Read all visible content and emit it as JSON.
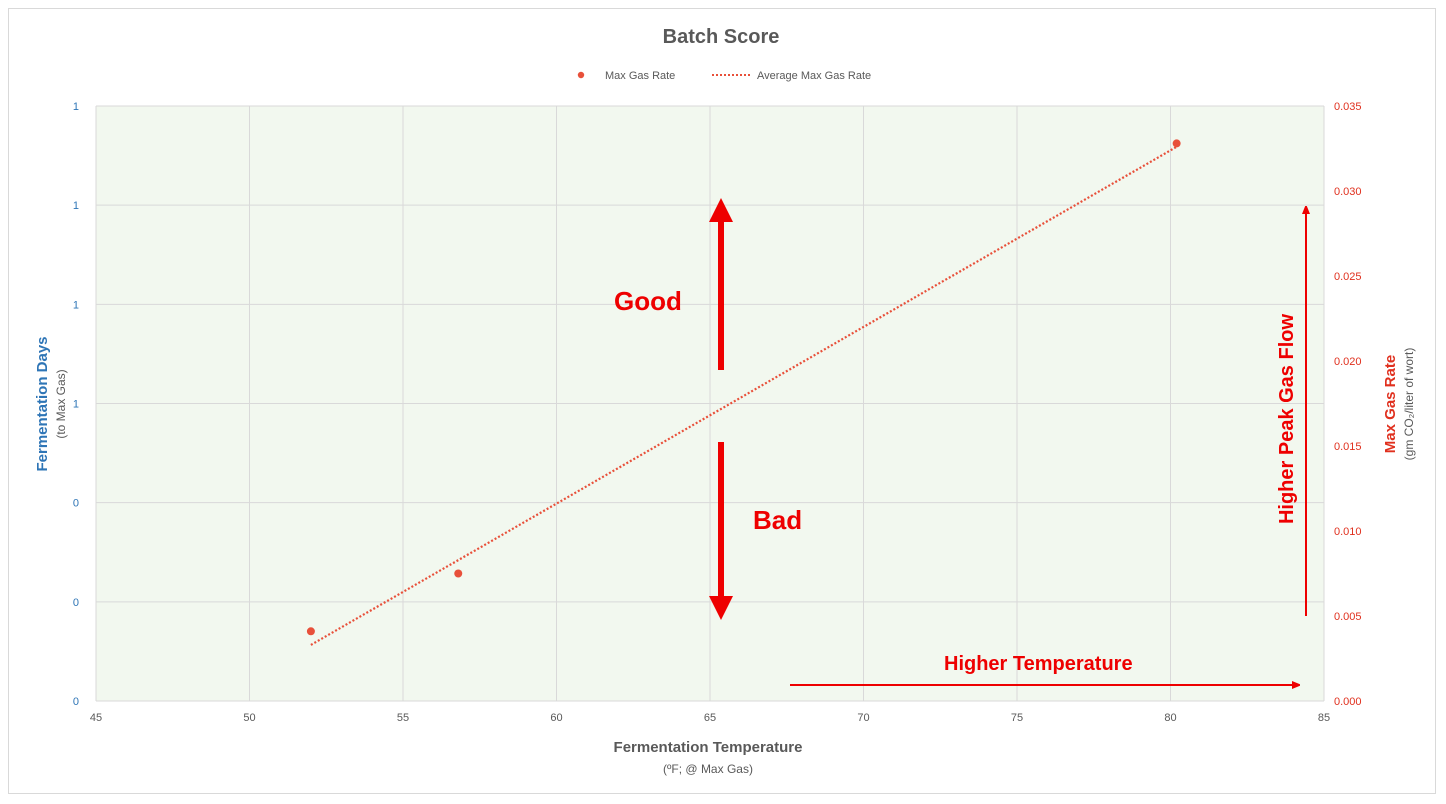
{
  "chart_data": {
    "type": "scatter",
    "title": "Batch Score",
    "legend": {
      "placement": "top-center",
      "entries": [
        "Max Gas Rate",
        "Average Max Gas Rate"
      ]
    },
    "series": [
      {
        "name": "Max Gas Rate",
        "axis": "right",
        "color": "#e8503a",
        "points": [
          {
            "x": 52.0,
            "y": 0.0041
          },
          {
            "x": 56.8,
            "y": 0.0075
          },
          {
            "x": 80.2,
            "y": 0.0328
          }
        ]
      },
      {
        "name": "Average Max Gas Rate",
        "kind": "trendline",
        "style": "dotted",
        "axis": "right",
        "color": "#e8503a",
        "points": [
          {
            "x": 52.0,
            "y": 0.0033
          },
          {
            "x": 80.2,
            "y": 0.0326
          }
        ]
      }
    ],
    "x_axis": {
      "label": "Fermentation Temperature",
      "sublabel": "(ºF; @ Max Gas)",
      "range": [
        45,
        85
      ],
      "ticks": [
        "45",
        "50",
        "55",
        "60",
        "65",
        "70",
        "75",
        "80",
        "85"
      ]
    },
    "y_left": {
      "label": "Fermentation Days",
      "sublabel": "(to Max Gas)",
      "color": "#2e75b6",
      "ticks": [
        "1",
        "1",
        "1",
        "1",
        "0",
        "0",
        "0"
      ]
    },
    "y_right": {
      "label": "Max Gas Rate",
      "sublabel": "(gm CO₂/liter of wort)",
      "color": "#e0301e",
      "range": [
        0,
        0.035
      ],
      "ticks": [
        "0.000",
        "0.005",
        "0.010",
        "0.015",
        "0.020",
        "0.025",
        "0.030",
        "0.035"
      ]
    },
    "grid": true,
    "plot_background": "#f2f8ef",
    "annotations": {
      "good": "Good",
      "bad": "Bad",
      "higher_temperature": "Higher Temperature",
      "higher_peak_gas_flow": "Higher Peak Gas Flow",
      "color": "#ee0000"
    }
  }
}
